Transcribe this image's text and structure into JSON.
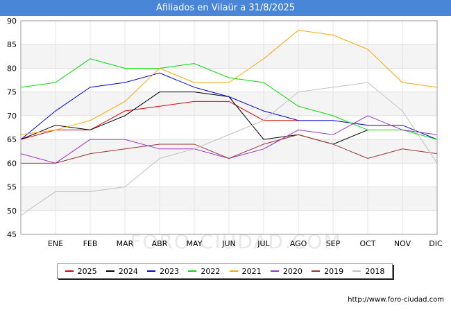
{
  "title": "Afiliados en Vilaür a 31/8/2025",
  "watermark": "FORO-CIUDAD.COM",
  "footer_url": "http://www.foro-ciudad.com",
  "chart_data": {
    "type": "line",
    "title": "Afiliados en Vilaür a 31/8/2025",
    "xlabel": "",
    "ylabel": "",
    "ylim": [
      45,
      90
    ],
    "yticks": [
      "45",
      "50",
      "55",
      "60",
      "65",
      "70",
      "75",
      "80",
      "85",
      "90"
    ],
    "categories": [
      "",
      "ENE",
      "FEB",
      "MAR",
      "ABR",
      "MAY",
      "JUN",
      "JUL",
      "AGO",
      "SEP",
      "OCT",
      "NOV",
      "DIC"
    ],
    "grid": true,
    "legend_position": "bottom",
    "series": [
      {
        "name": "2025",
        "color": "#dd0000",
        "values": [
          65,
          67,
          67,
          71,
          72,
          73,
          73,
          69,
          69,
          null,
          null,
          null,
          null
        ]
      },
      {
        "name": "2024",
        "color": "#000000",
        "values": [
          65,
          68,
          67,
          70,
          75,
          75,
          74,
          65,
          66,
          64,
          67,
          null,
          null
        ]
      },
      {
        "name": "2023",
        "color": "#0000dd",
        "values": [
          65,
          71,
          76,
          77,
          79,
          76,
          74,
          71,
          69,
          69,
          68,
          68,
          65
        ]
      },
      {
        "name": "2022",
        "color": "#00dd00",
        "values": [
          76,
          77,
          82,
          80,
          80,
          81,
          78,
          77,
          72,
          70,
          67,
          67,
          65
        ]
      },
      {
        "name": "2021",
        "color": "#ffa500",
        "values": [
          66,
          67,
          69,
          73,
          80,
          77,
          77,
          82,
          88,
          87,
          84,
          77,
          76
        ]
      },
      {
        "name": "2020",
        "color": "#9933cc",
        "values": [
          62,
          60,
          65,
          65,
          63,
          63,
          61,
          63,
          67,
          66,
          70,
          67,
          66
        ]
      },
      {
        "name": "2019",
        "color": "#993333",
        "values": [
          60,
          60,
          62,
          63,
          64,
          64,
          61,
          64,
          66,
          64,
          61,
          63,
          62
        ]
      },
      {
        "name": "2018",
        "color": "#c0c0c0",
        "values": [
          49,
          54,
          54,
          55,
          61,
          63,
          66,
          69,
          75,
          76,
          77,
          71,
          60
        ]
      }
    ]
  }
}
